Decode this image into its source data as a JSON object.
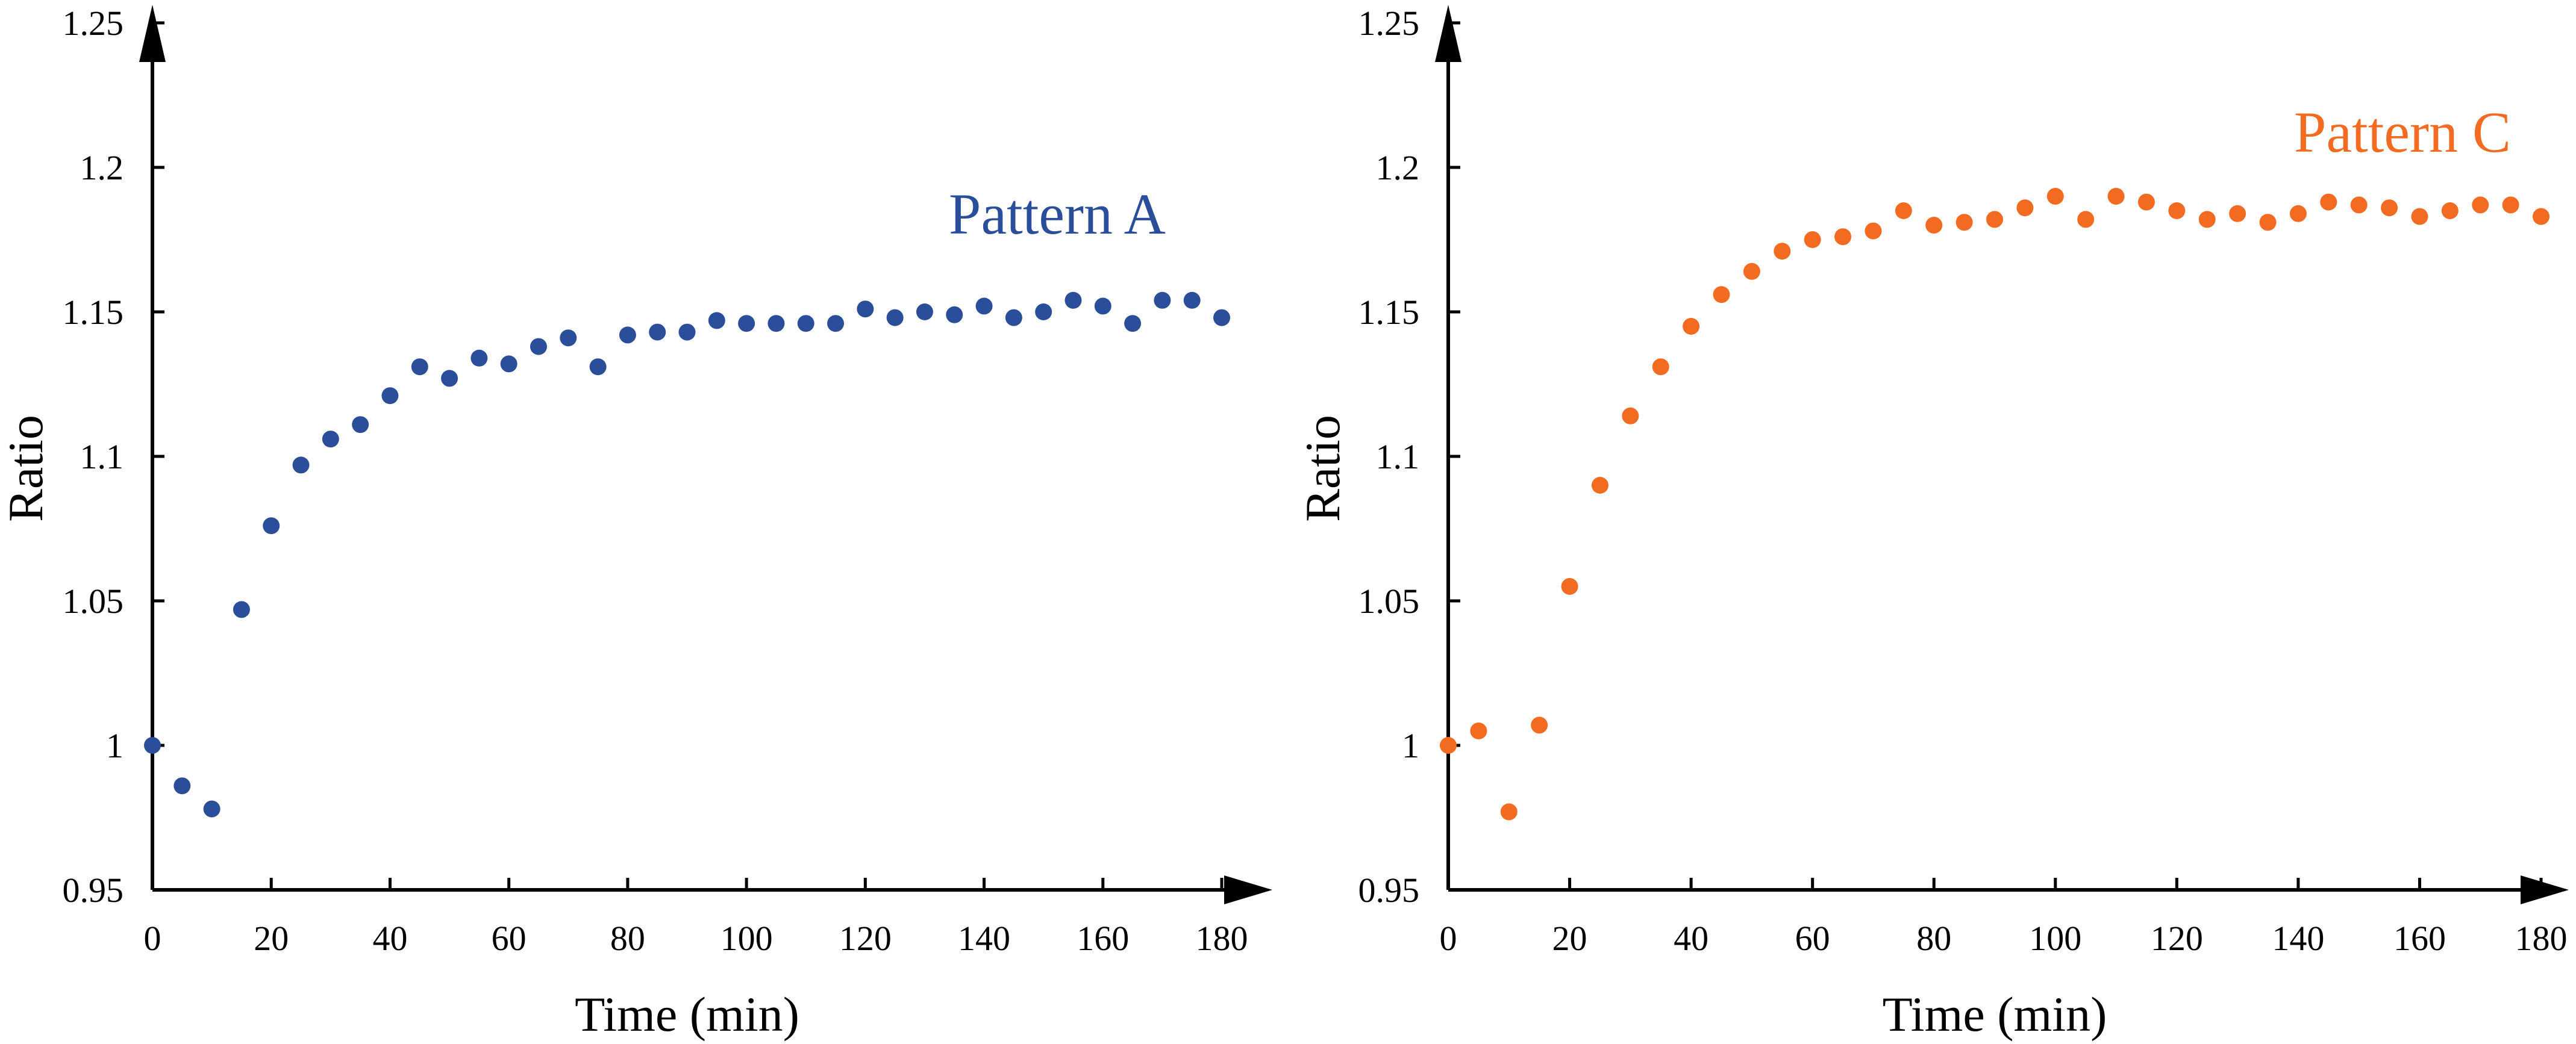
{
  "chart_data": [
    {
      "type": "scatter",
      "title": "",
      "xlabel": "Time (min)",
      "ylabel": "Ratio",
      "xlim": [
        0,
        180
      ],
      "ylim": [
        0.95,
        1.25
      ],
      "xticks": [
        "0",
        "20",
        "40",
        "60",
        "80",
        "100",
        "120",
        "140",
        "160",
        "180"
      ],
      "yticks": [
        "0.95",
        "1",
        "1.05",
        "1.1",
        "1.15",
        "1.2",
        "1.25"
      ],
      "grid": false,
      "legend": "none",
      "series": [
        {
          "name": "Pattern A",
          "color": "#2b4e9b",
          "x": [
            0,
            5,
            10,
            15,
            20,
            25,
            30,
            35,
            40,
            45,
            50,
            55,
            60,
            65,
            70,
            75,
            80,
            85,
            90,
            95,
            100,
            105,
            110,
            115,
            120,
            125,
            130,
            135,
            140,
            145,
            150,
            155,
            160,
            165,
            170,
            175,
            180
          ],
          "y": [
            1.0,
            0.986,
            0.978,
            1.047,
            1.076,
            1.097,
            1.106,
            1.111,
            1.121,
            1.131,
            1.127,
            1.134,
            1.132,
            1.138,
            1.141,
            1.131,
            1.142,
            1.143,
            1.143,
            1.147,
            1.146,
            1.146,
            1.146,
            1.146,
            1.151,
            1.148,
            1.15,
            1.149,
            1.152,
            1.148,
            1.15,
            1.154,
            1.152,
            1.146,
            1.154,
            1.154,
            1.148
          ]
        }
      ]
    },
    {
      "type": "scatter",
      "title": "",
      "xlabel": "Time (min)",
      "ylabel": "Ratio",
      "xlim": [
        0,
        180
      ],
      "ylim": [
        0.95,
        1.25
      ],
      "xticks": [
        "0",
        "20",
        "40",
        "60",
        "80",
        "100",
        "120",
        "140",
        "160",
        "180"
      ],
      "yticks": [
        "0.95",
        "1",
        "1.05",
        "1.1",
        "1.15",
        "1.2",
        "1.25"
      ],
      "grid": false,
      "legend": "none",
      "series": [
        {
          "name": "Pattern C",
          "color": "#f26b21",
          "x": [
            0,
            5,
            10,
            15,
            20,
            25,
            30,
            35,
            40,
            45,
            50,
            55,
            60,
            65,
            70,
            75,
            80,
            85,
            90,
            95,
            100,
            105,
            110,
            115,
            120,
            125,
            130,
            135,
            140,
            145,
            150,
            155,
            160,
            165,
            170,
            175,
            180
          ],
          "y": [
            1.0,
            1.005,
            0.977,
            1.007,
            1.055,
            1.09,
            1.114,
            1.131,
            1.145,
            1.156,
            1.164,
            1.171,
            1.175,
            1.176,
            1.178,
            1.185,
            1.18,
            1.181,
            1.182,
            1.186,
            1.19,
            1.182,
            1.19,
            1.188,
            1.185,
            1.182,
            1.184,
            1.181,
            1.184,
            1.188,
            1.187,
            1.186,
            1.183,
            1.185,
            1.187,
            1.187,
            1.183
          ]
        }
      ]
    }
  ]
}
